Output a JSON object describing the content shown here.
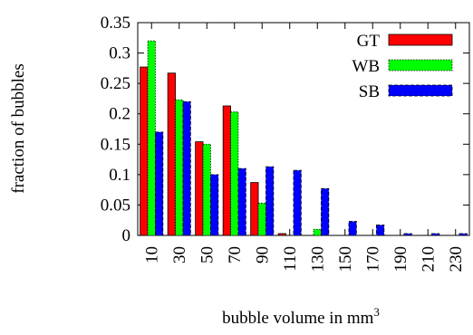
{
  "chart_data": {
    "type": "bar",
    "title": "",
    "xlabel": "bubble volume in mm",
    "xlabel_superscript": "3",
    "ylabel": "fraction of bubbles",
    "ylim": [
      0,
      0.35
    ],
    "yticks": [
      "0",
      "0.05",
      "0.1",
      "0.15",
      "0.2",
      "0.25",
      "0.3",
      "0.35"
    ],
    "categories": [
      "10",
      "30",
      "50",
      "70",
      "90",
      "110",
      "130",
      "150",
      "170",
      "190",
      "210",
      "230"
    ],
    "legend_position": "top-right",
    "grid": false,
    "series": [
      {
        "name": "GT",
        "color": "#ff0000",
        "values": [
          0.277,
          0.267,
          0.154,
          0.213,
          0.087,
          0.003,
          0.0,
          0.0,
          0.0,
          0.0,
          0.0,
          0.0
        ]
      },
      {
        "name": "WB",
        "color": "#00ff00",
        "values": [
          0.32,
          0.223,
          0.15,
          0.203,
          0.053,
          0.0,
          0.01,
          0.0,
          0.0,
          0.0,
          0.0,
          0.0
        ]
      },
      {
        "name": "SB",
        "color": "#0000ff",
        "values": [
          0.17,
          0.22,
          0.1,
          0.11,
          0.113,
          0.107,
          0.077,
          0.023,
          0.017,
          0.003,
          0.003,
          0.003
        ]
      }
    ]
  }
}
